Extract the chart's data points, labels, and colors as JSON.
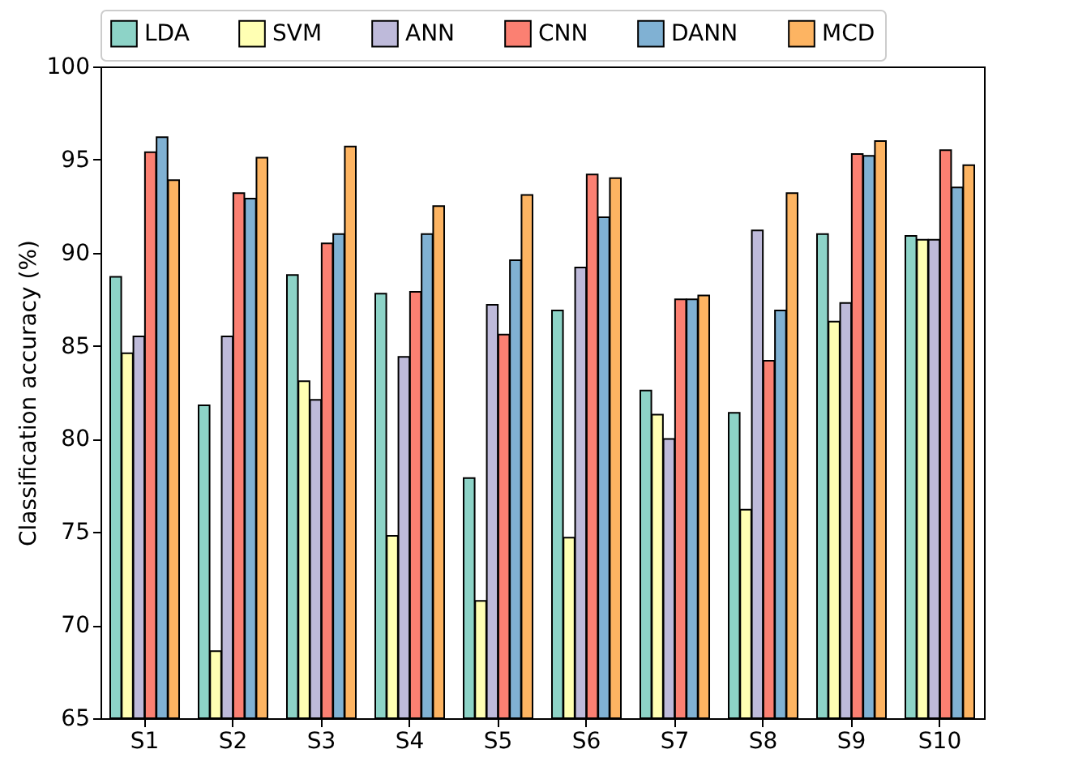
{
  "chart_data": {
    "type": "bar",
    "ylabel": "Classification accuracy (%)",
    "categories": [
      "S1",
      "S2",
      "S3",
      "S4",
      "S5",
      "S6",
      "S7",
      "S8",
      "S9",
      "S10"
    ],
    "series": [
      {
        "name": "LDA",
        "color": "#8dd3c7",
        "values": [
          88.7,
          81.8,
          88.8,
          87.8,
          77.9,
          86.9,
          82.6,
          81.4,
          91.0,
          90.9
        ]
      },
      {
        "name": "SVM",
        "color": "#ffffb3",
        "values": [
          84.6,
          68.6,
          83.1,
          74.8,
          71.3,
          74.7,
          81.3,
          76.2,
          86.3,
          90.7
        ]
      },
      {
        "name": "ANN",
        "color": "#bebada",
        "values": [
          85.5,
          85.5,
          82.1,
          84.4,
          87.2,
          89.2,
          80.0,
          91.2,
          87.3,
          90.7
        ]
      },
      {
        "name": "CNN",
        "color": "#fb8072",
        "values": [
          95.4,
          93.2,
          90.5,
          87.9,
          85.6,
          94.2,
          87.5,
          84.2,
          95.3,
          95.5
        ]
      },
      {
        "name": "DANN",
        "color": "#80b1d3",
        "values": [
          96.2,
          92.9,
          91.0,
          91.0,
          89.6,
          91.9,
          87.5,
          86.9,
          95.2,
          93.5
        ]
      },
      {
        "name": "MCD",
        "color": "#fdb462",
        "values": [
          93.9,
          95.1,
          95.7,
          92.5,
          93.1,
          94.0,
          87.7,
          93.2,
          96.0,
          94.7
        ]
      }
    ],
    "ylim": [
      65,
      100
    ],
    "yticks": [
      65,
      70,
      75,
      80,
      85,
      90,
      95,
      100
    ],
    "grid": false,
    "legend": "top"
  }
}
